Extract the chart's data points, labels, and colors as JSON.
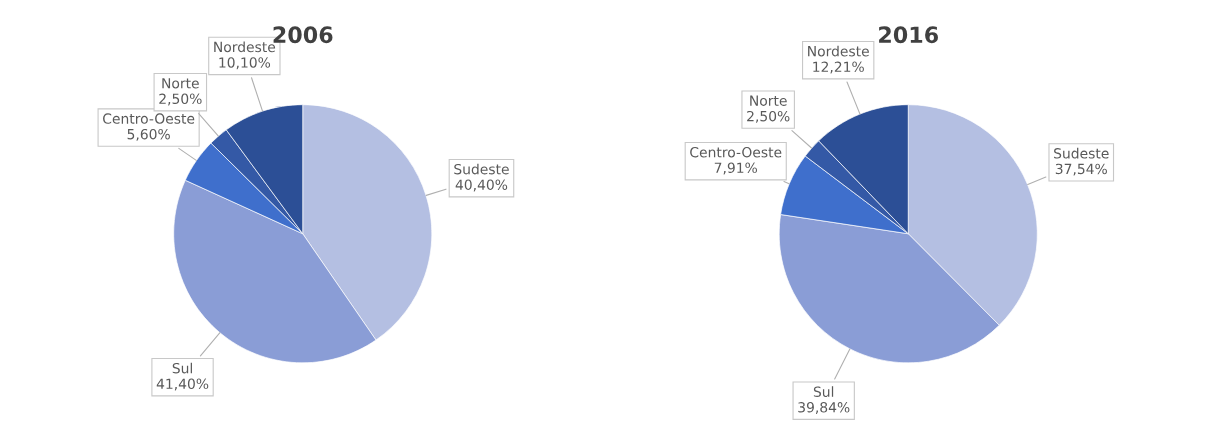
{
  "chart_data": [
    {
      "type": "pie",
      "title": "2006",
      "categories": [
        "Sudeste",
        "Sul",
        "Centro-Oeste",
        "Norte",
        "Nordeste"
      ],
      "values": [
        40.4,
        41.4,
        5.6,
        2.5,
        10.1
      ],
      "value_labels": [
        "40,40%",
        "41,40%",
        "5,60%",
        "2,50%",
        "10,10%"
      ],
      "colors": [
        "#b4bfe2",
        "#8a9dd6",
        "#3f6fcc",
        "#3459a6",
        "#2c4f96"
      ]
    },
    {
      "type": "pie",
      "title": "2016",
      "categories": [
        "Sudeste",
        "Sul",
        "Centro-Oeste",
        "Norte",
        "Nordeste"
      ],
      "values": [
        37.54,
        39.84,
        7.91,
        2.5,
        12.21
      ],
      "value_labels": [
        "37,54%",
        "39,84%",
        "7,91%",
        "2,50%",
        "12,21%"
      ],
      "colors": [
        "#b4bfe2",
        "#8a9dd6",
        "#3f6fcc",
        "#3459a6",
        "#2c4f96"
      ]
    }
  ]
}
